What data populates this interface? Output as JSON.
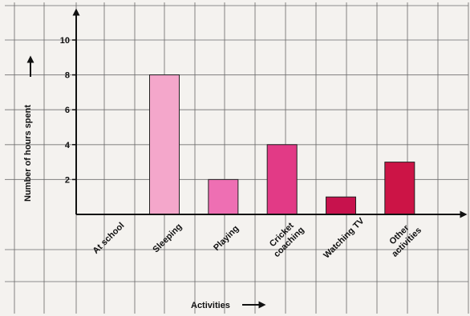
{
  "chart_data": {
    "type": "bar",
    "categories": [
      [
        "At school"
      ],
      [
        "Sleeping"
      ],
      [
        "Playing"
      ],
      [
        "Cricket",
        "coaching"
      ],
      [
        "Watching TV"
      ],
      [
        "Other",
        "activities"
      ]
    ],
    "values": [
      0,
      8,
      2,
      4,
      1,
      3
    ],
    "bar_colors": [
      "#f4a7cb",
      "#f4a7cb",
      "#ee6fb3",
      "#e23a86",
      "#c7124d",
      "#cc1446"
    ],
    "xlabel": "Activities",
    "ylabel": "Number of hours spent",
    "ylim": [
      0,
      10
    ],
    "yticks": [
      2,
      4,
      6,
      8,
      10
    ],
    "grid": true,
    "colors": {
      "background": "#f4f2ef",
      "grid": "#6b6b6b",
      "axis": "#111111"
    }
  }
}
